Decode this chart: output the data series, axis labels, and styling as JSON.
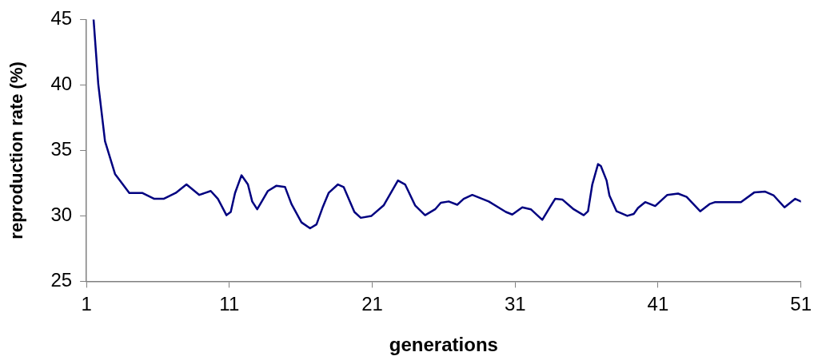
{
  "chart_data": {
    "type": "line",
    "xlabel": "generations",
    "ylabel": "reproduction rate (%)",
    "xlim": [
      1,
      51
    ],
    "ylim": [
      25,
      45
    ],
    "xticks": [
      1,
      11,
      21,
      31,
      41,
      51
    ],
    "yticks": [
      25,
      30,
      35,
      40,
      45
    ],
    "grid": false,
    "legend": false,
    "marker": "none",
    "line_style": "solid",
    "series": [
      {
        "color": "#000080",
        "x": [
          1.5,
          1.83,
          2.3,
          3.0,
          4.0,
          4.9,
          5.75,
          6.4,
          7.25,
          8.0,
          8.9,
          9.7,
          10.2,
          10.8,
          11.1,
          11.4,
          11.85,
          12.3,
          12.6,
          12.95,
          13.7,
          14.3,
          14.9,
          15.35,
          16.05,
          16.65,
          17.1,
          17.55,
          17.95,
          18.6,
          19.0,
          19.75,
          20.2,
          20.95,
          21.8,
          22.8,
          23.3,
          24.0,
          24.7,
          25.4,
          25.8,
          26.35,
          26.95,
          27.4,
          28.0,
          29.15,
          30.35,
          30.8,
          31.5,
          32.1,
          32.55,
          32.9,
          33.4,
          33.8,
          34.3,
          35.1,
          35.8,
          36.1,
          36.4,
          36.8,
          37.0,
          37.4,
          37.6,
          38.1,
          38.85,
          39.3,
          39.6,
          40.1,
          40.8,
          41.65,
          42.4,
          43.0,
          43.95,
          44.6,
          45.0,
          46.8,
          47.75,
          48.5,
          49.1,
          49.85,
          50.6,
          51
        ],
        "values": [
          45,
          40.05,
          35.7,
          33.2,
          31.75,
          31.75,
          31.3,
          31.3,
          31.75,
          32.4,
          31.6,
          31.9,
          31.3,
          30.05,
          30.3,
          31.75,
          33.1,
          32.4,
          31.1,
          30.5,
          31.9,
          32.3,
          32.2,
          30.9,
          29.5,
          29.05,
          29.35,
          30.7,
          31.75,
          32.4,
          32.2,
          30.3,
          29.85,
          30.0,
          30.8,
          32.7,
          32.4,
          30.8,
          30.05,
          30.5,
          31.0,
          31.1,
          30.85,
          31.3,
          31.6,
          31.1,
          30.3,
          30.1,
          30.65,
          30.5,
          30.05,
          29.7,
          30.6,
          31.3,
          31.25,
          30.5,
          30.05,
          30.35,
          32.4,
          33.95,
          33.8,
          32.7,
          31.55,
          30.35,
          30.0,
          30.15,
          30.6,
          31.05,
          30.75,
          31.6,
          31.7,
          31.45,
          30.35,
          30.9,
          31.05,
          31.05,
          31.8,
          31.85,
          31.55,
          30.65,
          31.3,
          31.1
        ]
      }
    ]
  }
}
